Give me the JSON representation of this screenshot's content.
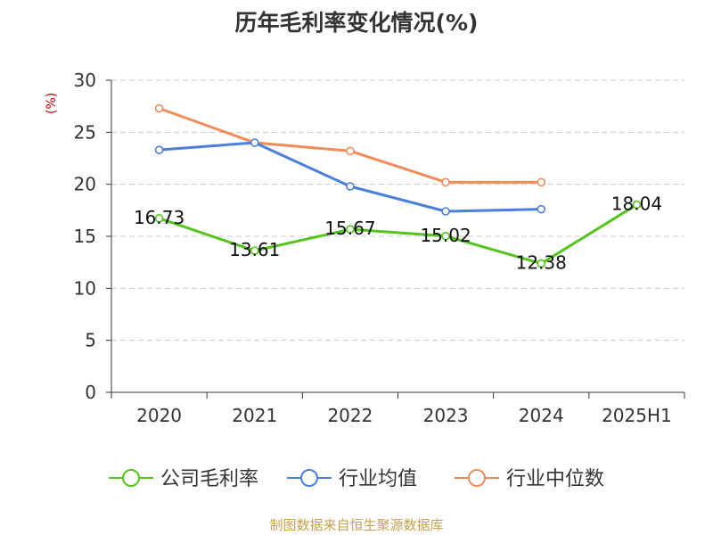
{
  "chart_data": {
    "type": "line",
    "title": "历年毛利率变化情况(%)",
    "ylabel": "(%)",
    "xlabel": "",
    "categories": [
      "2020",
      "2021",
      "2022",
      "2023",
      "2024",
      "2025H1"
    ],
    "ylim": [
      0,
      30
    ],
    "yticks": [
      0,
      5,
      10,
      15,
      20,
      25,
      30
    ],
    "grid": true,
    "legend_position": "bottom",
    "series": [
      {
        "name": "公司毛利率",
        "color": "#52c41a",
        "labels": true,
        "values": [
          16.73,
          13.61,
          15.67,
          15.02,
          12.38,
          18.04
        ]
      },
      {
        "name": "行业均值",
        "color": "#4a7fdc",
        "labels": false,
        "values": [
          23.3,
          24.0,
          19.8,
          17.4,
          17.6,
          null
        ]
      },
      {
        "name": "行业中位数",
        "color": "#f08c5a",
        "labels": false,
        "values": [
          27.3,
          24.0,
          23.2,
          20.2,
          20.2,
          null
        ]
      }
    ]
  },
  "footer": {
    "source": "制图数据来自恒生聚源数据库"
  }
}
